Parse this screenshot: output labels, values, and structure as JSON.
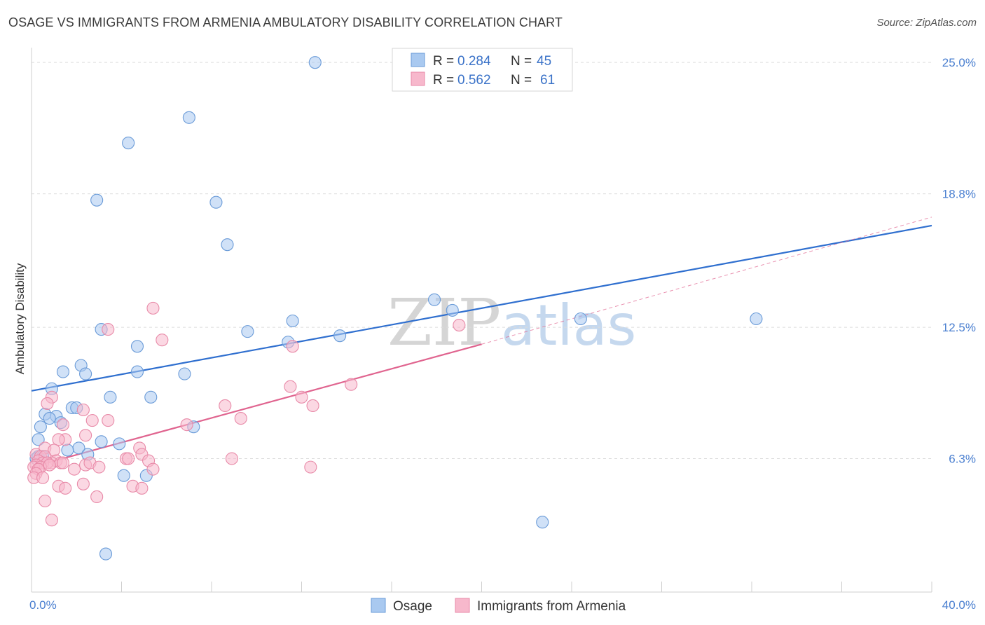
{
  "header": {
    "title": "OSAGE VS IMMIGRANTS FROM ARMENIA AMBULATORY DISABILITY CORRELATION CHART",
    "source": "Source: ZipAtlas.com"
  },
  "colors": {
    "blue_fill": "#a9c9f0",
    "blue_stroke": "#6a9bd8",
    "blue_line": "#2f6fcf",
    "pink_fill": "#f7b8cc",
    "pink_stroke": "#e88aa8",
    "pink_line": "#e0648f",
    "tick_text": "#4a7fd0",
    "grid": "#dcdcdc"
  },
  "legend": {
    "rows": [
      {
        "r_label": "R = ",
        "r_value": "0.284",
        "n_label": "N = ",
        "n_value": "45"
      },
      {
        "r_label": "R = ",
        "r_value": "0.562",
        "n_label": "N = ",
        "n_value": "61"
      }
    ]
  },
  "watermark": {
    "zip": "ZIP",
    "atlas": "atlas"
  },
  "chart_data": {
    "type": "scatter",
    "title": "OSAGE VS IMMIGRANTS FROM ARMENIA AMBULATORY DISABILITY CORRELATION CHART",
    "xlabel": "",
    "ylabel": "Ambulatory Disability",
    "xlim": [
      0,
      40
    ],
    "ylim": [
      0,
      25.7
    ],
    "x_tick_labels": [
      {
        "value": 0,
        "label": "0.0%"
      },
      {
        "value": 40,
        "label": "40.0%"
      }
    ],
    "y_tick_labels": [
      {
        "value": 6.3,
        "label": "6.3%"
      },
      {
        "value": 12.5,
        "label": "12.5%"
      },
      {
        "value": 18.8,
        "label": "18.8%"
      },
      {
        "value": 25.0,
        "label": "25.0%"
      }
    ],
    "series": [
      {
        "name": "Osage",
        "R": 0.284,
        "N": 45,
        "trend": {
          "x0": 0,
          "y0": 9.5,
          "x1": 40,
          "y1": 17.3
        },
        "points": [
          [
            12.6,
            25.0
          ],
          [
            7.0,
            22.4
          ],
          [
            4.3,
            21.2
          ],
          [
            2.9,
            18.5
          ],
          [
            8.2,
            18.4
          ],
          [
            8.7,
            16.4
          ],
          [
            17.9,
            13.8
          ],
          [
            18.7,
            13.3
          ],
          [
            24.4,
            12.9
          ],
          [
            32.2,
            12.9
          ],
          [
            11.6,
            12.8
          ],
          [
            3.1,
            12.4
          ],
          [
            9.6,
            12.3
          ],
          [
            13.7,
            12.1
          ],
          [
            11.4,
            11.8
          ],
          [
            4.7,
            11.6
          ],
          [
            2.2,
            10.7
          ],
          [
            1.4,
            10.4
          ],
          [
            2.4,
            10.3
          ],
          [
            4.7,
            10.4
          ],
          [
            6.8,
            10.3
          ],
          [
            0.9,
            9.6
          ],
          [
            3.5,
            9.2
          ],
          [
            5.3,
            9.2
          ],
          [
            1.8,
            8.7
          ],
          [
            2.0,
            8.7
          ],
          [
            0.6,
            8.4
          ],
          [
            1.1,
            8.3
          ],
          [
            0.8,
            8.2
          ],
          [
            1.3,
            8.0
          ],
          [
            0.4,
            7.8
          ],
          [
            7.2,
            7.8
          ],
          [
            0.3,
            7.2
          ],
          [
            3.1,
            7.1
          ],
          [
            3.9,
            7.0
          ],
          [
            2.1,
            6.8
          ],
          [
            1.6,
            6.7
          ],
          [
            2.5,
            6.5
          ],
          [
            0.3,
            6.4
          ],
          [
            0.5,
            6.4
          ],
          [
            0.2,
            6.3
          ],
          [
            4.1,
            5.5
          ],
          [
            5.1,
            5.5
          ],
          [
            22.7,
            3.3
          ],
          [
            3.3,
            1.8
          ]
        ]
      },
      {
        "name": "Immigrants from Armenia",
        "R": 0.562,
        "N": 61,
        "trend": {
          "x0": 0,
          "y0": 5.9,
          "x1": 20,
          "y1": 11.7
        },
        "trend_ext": {
          "x0": 20,
          "y0": 11.7,
          "x1": 40,
          "y1": 17.7
        },
        "points": [
          [
            5.4,
            13.4
          ],
          [
            3.4,
            12.4
          ],
          [
            19.0,
            12.6
          ],
          [
            5.8,
            11.9
          ],
          [
            11.6,
            11.6
          ],
          [
            14.2,
            9.8
          ],
          [
            11.5,
            9.7
          ],
          [
            12.0,
            9.2
          ],
          [
            0.9,
            9.2
          ],
          [
            0.7,
            8.9
          ],
          [
            8.6,
            8.8
          ],
          [
            12.5,
            8.8
          ],
          [
            2.3,
            8.6
          ],
          [
            9.3,
            8.2
          ],
          [
            2.7,
            8.1
          ],
          [
            3.4,
            8.1
          ],
          [
            6.9,
            7.9
          ],
          [
            1.4,
            7.9
          ],
          [
            2.4,
            7.4
          ],
          [
            1.5,
            7.2
          ],
          [
            1.2,
            7.2
          ],
          [
            0.6,
            6.8
          ],
          [
            1.0,
            6.7
          ],
          [
            4.8,
            6.8
          ],
          [
            0.2,
            6.5
          ],
          [
            0.4,
            6.4
          ],
          [
            0.6,
            6.4
          ],
          [
            4.9,
            6.5
          ],
          [
            4.2,
            6.3
          ],
          [
            5.2,
            6.2
          ],
          [
            8.9,
            6.3
          ],
          [
            4.3,
            6.3
          ],
          [
            0.3,
            6.2
          ],
          [
            1.1,
            6.2
          ],
          [
            0.9,
            6.1
          ],
          [
            1.3,
            6.1
          ],
          [
            0.5,
            6.1
          ],
          [
            0.7,
            6.1
          ],
          [
            0.2,
            6.0
          ],
          [
            0.1,
            5.9
          ],
          [
            0.4,
            5.9
          ],
          [
            0.8,
            6.0
          ],
          [
            1.4,
            6.1
          ],
          [
            2.4,
            6.0
          ],
          [
            2.6,
            6.1
          ],
          [
            0.3,
            5.8
          ],
          [
            0.2,
            5.6
          ],
          [
            1.9,
            5.8
          ],
          [
            5.4,
            5.8
          ],
          [
            3.0,
            5.9
          ],
          [
            12.4,
            5.9
          ],
          [
            0.1,
            5.4
          ],
          [
            0.5,
            5.4
          ],
          [
            1.2,
            5.0
          ],
          [
            2.3,
            5.1
          ],
          [
            4.5,
            5.0
          ],
          [
            4.9,
            4.9
          ],
          [
            1.5,
            4.9
          ],
          [
            2.9,
            4.5
          ],
          [
            0.6,
            4.3
          ],
          [
            0.9,
            3.4
          ]
        ]
      }
    ]
  }
}
